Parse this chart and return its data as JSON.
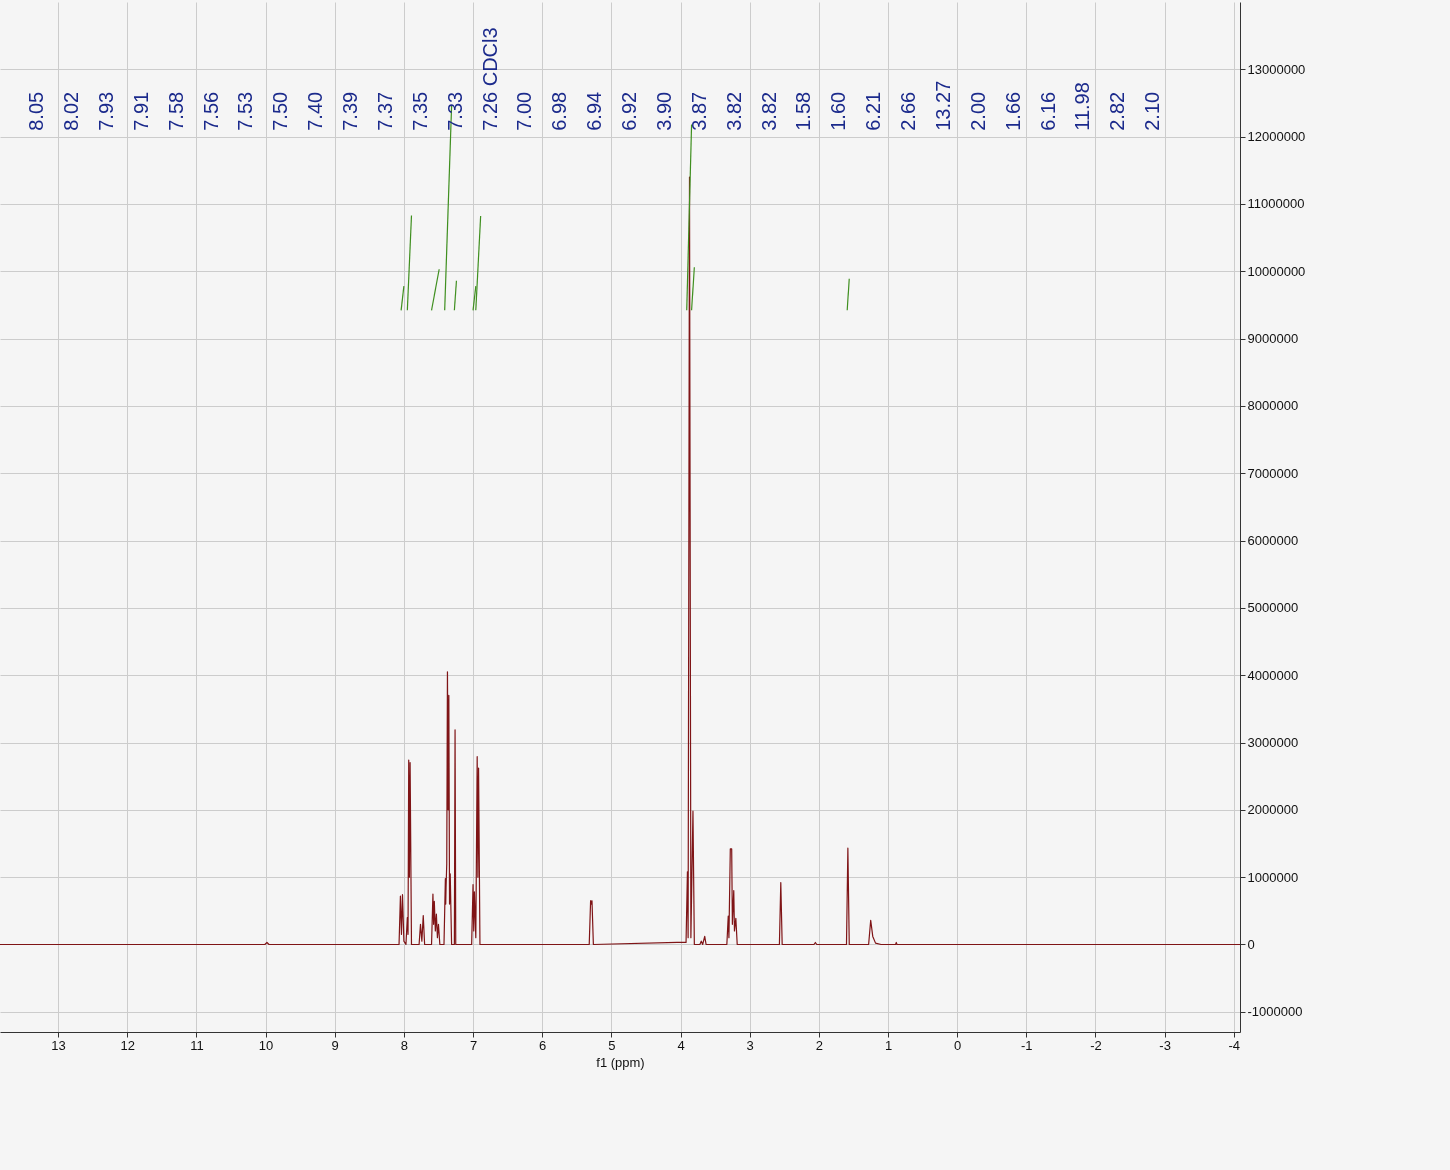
{
  "chart_data": {
    "type": "line",
    "xlabel": "f1 (ppm)",
    "xlim": [
      13.84,
      -4.09
    ],
    "xticks": [
      13,
      12,
      11,
      10,
      9,
      8,
      7,
      6,
      5,
      4,
      3,
      2,
      1,
      0,
      -1,
      -2,
      -3,
      -4
    ],
    "ylim": [
      -1300000,
      14000000
    ],
    "yticks": [
      -1000000,
      0,
      1000000,
      2000000,
      3000000,
      4000000,
      5000000,
      6000000,
      7000000,
      8000000,
      9000000,
      10000000,
      11000000,
      12000000,
      13000000
    ],
    "grid": true,
    "series": [
      {
        "color": "#7f1416",
        "x": [
          13.84,
          10.01,
          9.98,
          9.95,
          8.07,
          8.05,
          8.035,
          8.02,
          8.0,
          7.97,
          7.95,
          7.94,
          7.93,
          7.92,
          7.91,
          7.89,
          7.78,
          7.76,
          7.74,
          7.72,
          7.7,
          7.6,
          7.58,
          7.57,
          7.56,
          7.545,
          7.53,
          7.515,
          7.5,
          7.48,
          7.42,
          7.4,
          7.395,
          7.39,
          7.38,
          7.37,
          7.36,
          7.35,
          7.34,
          7.33,
          7.31,
          7.27,
          7.26,
          7.25,
          7.02,
          7.0,
          6.99,
          6.98,
          6.96,
          6.94,
          6.93,
          6.92,
          6.9,
          5.32,
          5.3,
          5.29,
          5.28,
          5.26,
          4.05,
          3.92,
          3.9,
          3.89,
          3.87,
          3.85,
          3.82,
          3.8,
          3.72,
          3.7,
          3.68,
          3.65,
          3.63,
          3.33,
          3.31,
          3.3,
          3.28,
          3.26,
          3.25,
          3.23,
          3.22,
          3.2,
          3.18,
          2.57,
          2.55,
          2.53,
          2.07,
          2.05,
          2.03,
          1.6,
          1.58,
          1.56,
          1.28,
          1.25,
          1.22,
          1.18,
          1.1,
          0.89,
          0.88,
          0.87,
          -4.09
        ],
        "values": [
          0,
          0,
          30000,
          0,
          0,
          720000,
          150000,
          740000,
          50000,
          0,
          400000,
          150000,
          2740000,
          1000000,
          2700000,
          0,
          0,
          300000,
          50000,
          430000,
          0,
          0,
          750000,
          300000,
          640000,
          200000,
          450000,
          100000,
          300000,
          0,
          0,
          980000,
          600000,
          850000,
          1200000,
          4050000,
          2000000,
          3700000,
          600000,
          1050000,
          0,
          0,
          3190000,
          0,
          0,
          890000,
          200000,
          780000,
          100000,
          2790000,
          1000000,
          2620000,
          0,
          0,
          650000,
          600000,
          650000,
          0,
          30000,
          30000,
          1080000,
          100000,
          11400000,
          100000,
          1980000,
          0,
          0,
          50000,
          0,
          120000,
          0,
          0,
          420000,
          100000,
          1420000,
          1420000,
          300000,
          800000,
          200000,
          390000,
          0,
          0,
          920000,
          0,
          0,
          30000,
          0,
          0,
          1430000,
          0,
          0,
          360000,
          120000,
          20000,
          0,
          0,
          30000,
          0,
          0
        ]
      },
      {
        "color": "#3f8f1f",
        "x": [
          8.04,
          8.0
        ],
        "values": [
          9420000,
          9780000
        ]
      },
      {
        "color": "#3f8f1f",
        "x": [
          7.95,
          7.89
        ],
        "values": [
          9420000,
          10830000
        ]
      },
      {
        "color": "#3f8f1f",
        "x": [
          7.6,
          7.49
        ],
        "values": [
          9420000,
          10030000
        ]
      },
      {
        "color": "#3f8f1f",
        "x": [
          7.41,
          7.31
        ],
        "values": [
          9420000,
          12460000
        ]
      },
      {
        "color": "#3f8f1f",
        "x": [
          7.27,
          7.24
        ],
        "values": [
          9420000,
          9860000
        ]
      },
      {
        "color": "#3f8f1f",
        "x": [
          7.0,
          6.96
        ],
        "values": [
          9420000,
          9780000
        ]
      },
      {
        "color": "#3f8f1f",
        "x": [
          6.96,
          6.89
        ],
        "values": [
          9420000,
          10820000
        ]
      },
      {
        "color": "#3f8f1f",
        "x": [
          3.91,
          3.84
        ],
        "values": [
          9420000,
          12180000
        ]
      },
      {
        "color": "#3f8f1f",
        "x": [
          3.84,
          3.8
        ],
        "values": [
          9420000,
          10060000
        ]
      },
      {
        "color": "#3f8f1f",
        "x": [
          1.59,
          1.56
        ],
        "values": [
          9420000,
          9890000
        ]
      }
    ],
    "annotations": [
      "8.05",
      "8.02",
      "7.93",
      "7.91",
      "7.58",
      "7.56",
      "7.53",
      "7.50",
      "7.40",
      "7.39",
      "7.37",
      "7.35",
      "7.33",
      "7.26 CDCl3",
      "7.00",
      "6.98",
      "6.94",
      "6.92",
      "3.90",
      "3.87",
      "3.82",
      "3.82",
      "1.58",
      "1.60",
      "6.21",
      "2.66",
      "13.27",
      "2.00",
      "1.66",
      "6.16",
      "11.98",
      "2.82",
      "2.10"
    ]
  }
}
